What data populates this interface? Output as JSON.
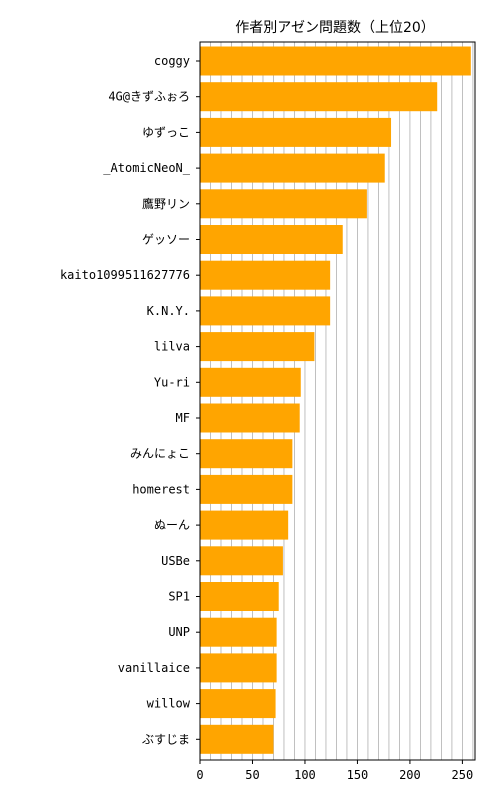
{
  "chart_data": {
    "type": "bar",
    "orientation": "horizontal",
    "title": "作者別アゼン問題数（上位20）",
    "xlabel": "",
    "ylabel": "",
    "xlim": [
      0,
      262
    ],
    "x_ticks": [
      "0",
      "50",
      "100",
      "150",
      "200",
      "250"
    ],
    "grid": "vertical lines every 10",
    "bar_color": "#ffa500",
    "categories": [
      "coggy",
      "4G@きずふぉろ",
      "ゆずっこ",
      "_AtomicNeoN_",
      "鷹野リン",
      "ゲッソー",
      "kaito1099511627776",
      "K.N.Y.",
      "lilva",
      "Yu-ri",
      "MF",
      "みんにょこ",
      "homerest",
      "ぬーん",
      "USBe",
      "SP1",
      "UNP",
      "vanillaice",
      "willow",
      "ぶすじま"
    ],
    "values": [
      258,
      226,
      182,
      176,
      159,
      136,
      124,
      124,
      109,
      96,
      95,
      88,
      88,
      84,
      79,
      75,
      73,
      73,
      72,
      70
    ]
  }
}
